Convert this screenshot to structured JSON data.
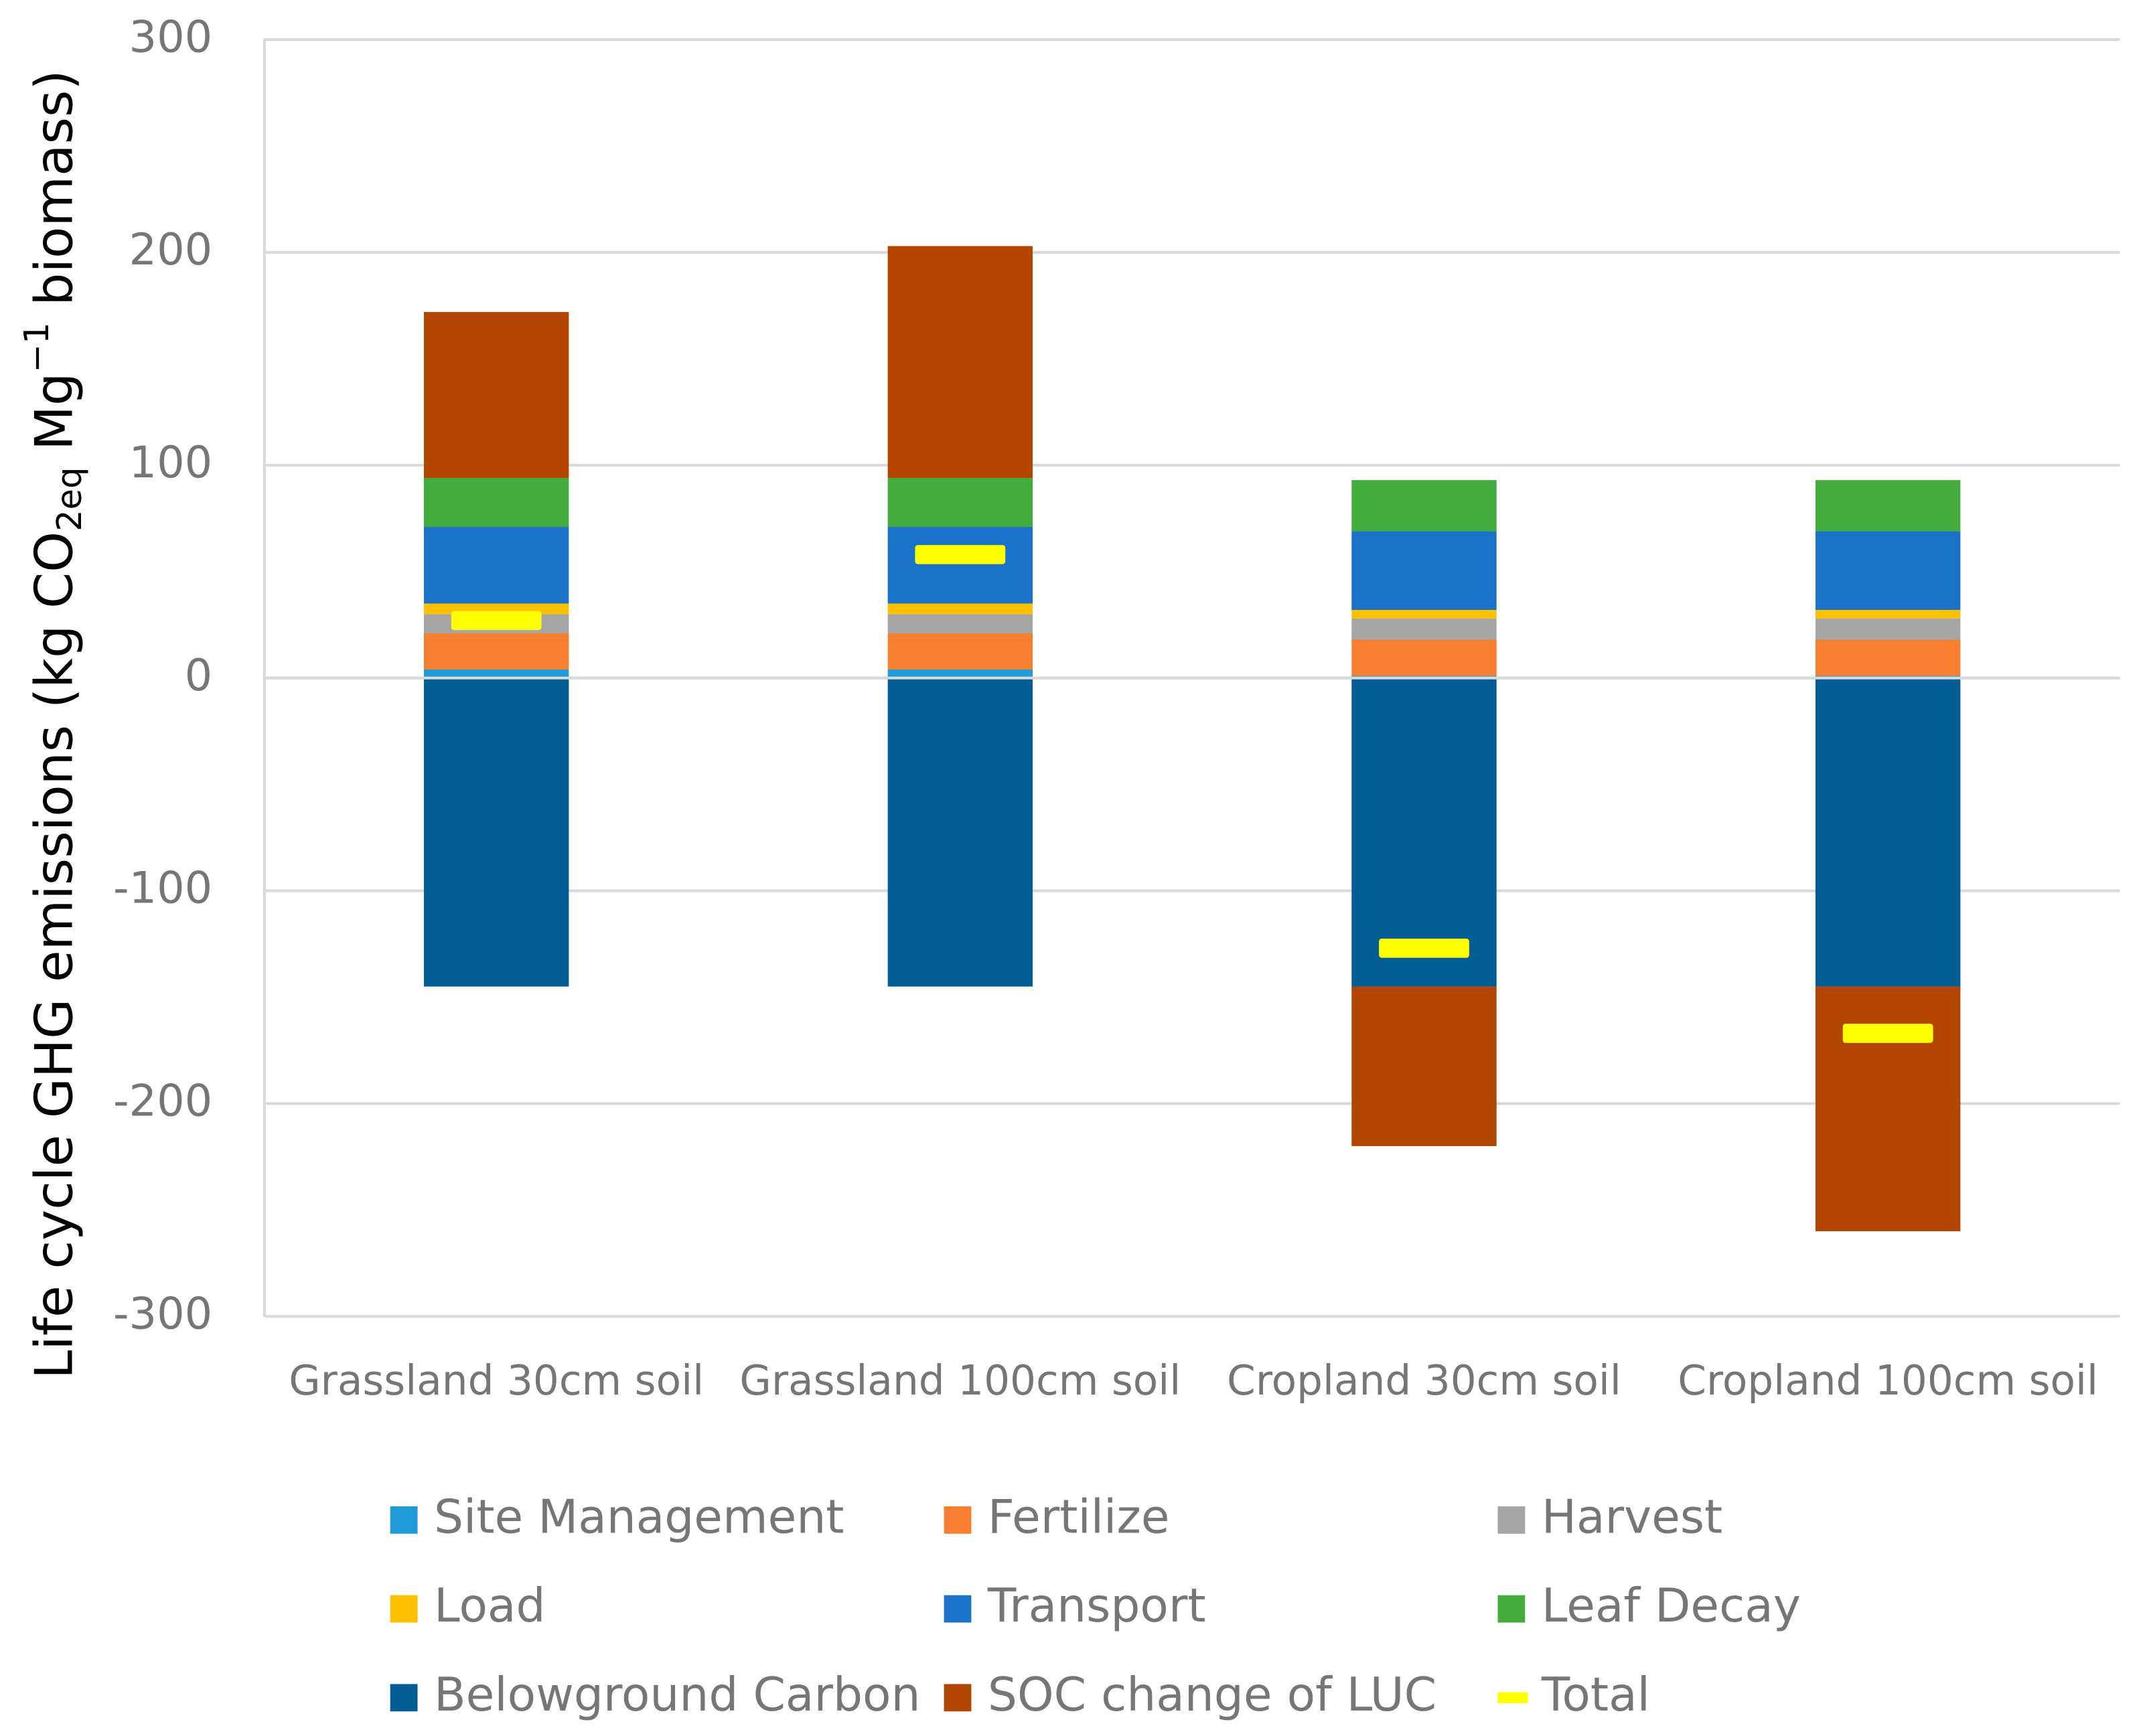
{
  "chart_data": {
    "type": "stacked_bar",
    "y_label": [
      "Life cycle GHG emissions (kg CO",
      "2eq",
      " Mg",
      "−1",
      " biomass)"
    ],
    "categories": [
      "Grassland 30cm soil",
      "Grassland 100cm soil",
      "Cropland 30cm soil",
      "Cropland 100cm soil"
    ],
    "series": [
      {
        "name": "Site Management",
        "color": "#1f9bd7",
        "values": [
          4,
          4,
          1,
          1
        ]
      },
      {
        "name": "Fertilize",
        "color": "#f77f2f",
        "values": [
          17,
          17,
          17,
          17
        ]
      },
      {
        "name": "Harvest",
        "color": "#a5a5a5",
        "values": [
          9,
          9,
          10,
          10
        ]
      },
      {
        "name": "Load",
        "color": "#ffc000",
        "values": [
          5,
          5,
          4,
          4
        ]
      },
      {
        "name": "Transport",
        "color": "#1b73c9",
        "values": [
          36,
          36,
          37,
          37
        ]
      },
      {
        "name": "Leaf Decay",
        "color": "#44ac3d",
        "values": [
          23,
          23,
          24,
          24
        ]
      },
      {
        "name": "Belowground Carbon",
        "color": "#025d95",
        "values": [
          -145,
          -145,
          -145,
          -145
        ]
      },
      {
        "name": "SOC change of LUC",
        "color": "#b24600",
        "values": [
          78,
          109,
          -75,
          -115
        ]
      },
      {
        "name": "Total",
        "color": "#ffff00",
        "style": "dash",
        "values": [
          27,
          58,
          -127,
          -167
        ]
      }
    ],
    "ylim": [
      -300,
      300
    ],
    "yticks": [
      -300,
      -200,
      -100,
      0,
      100,
      200,
      300
    ],
    "grid": true
  }
}
